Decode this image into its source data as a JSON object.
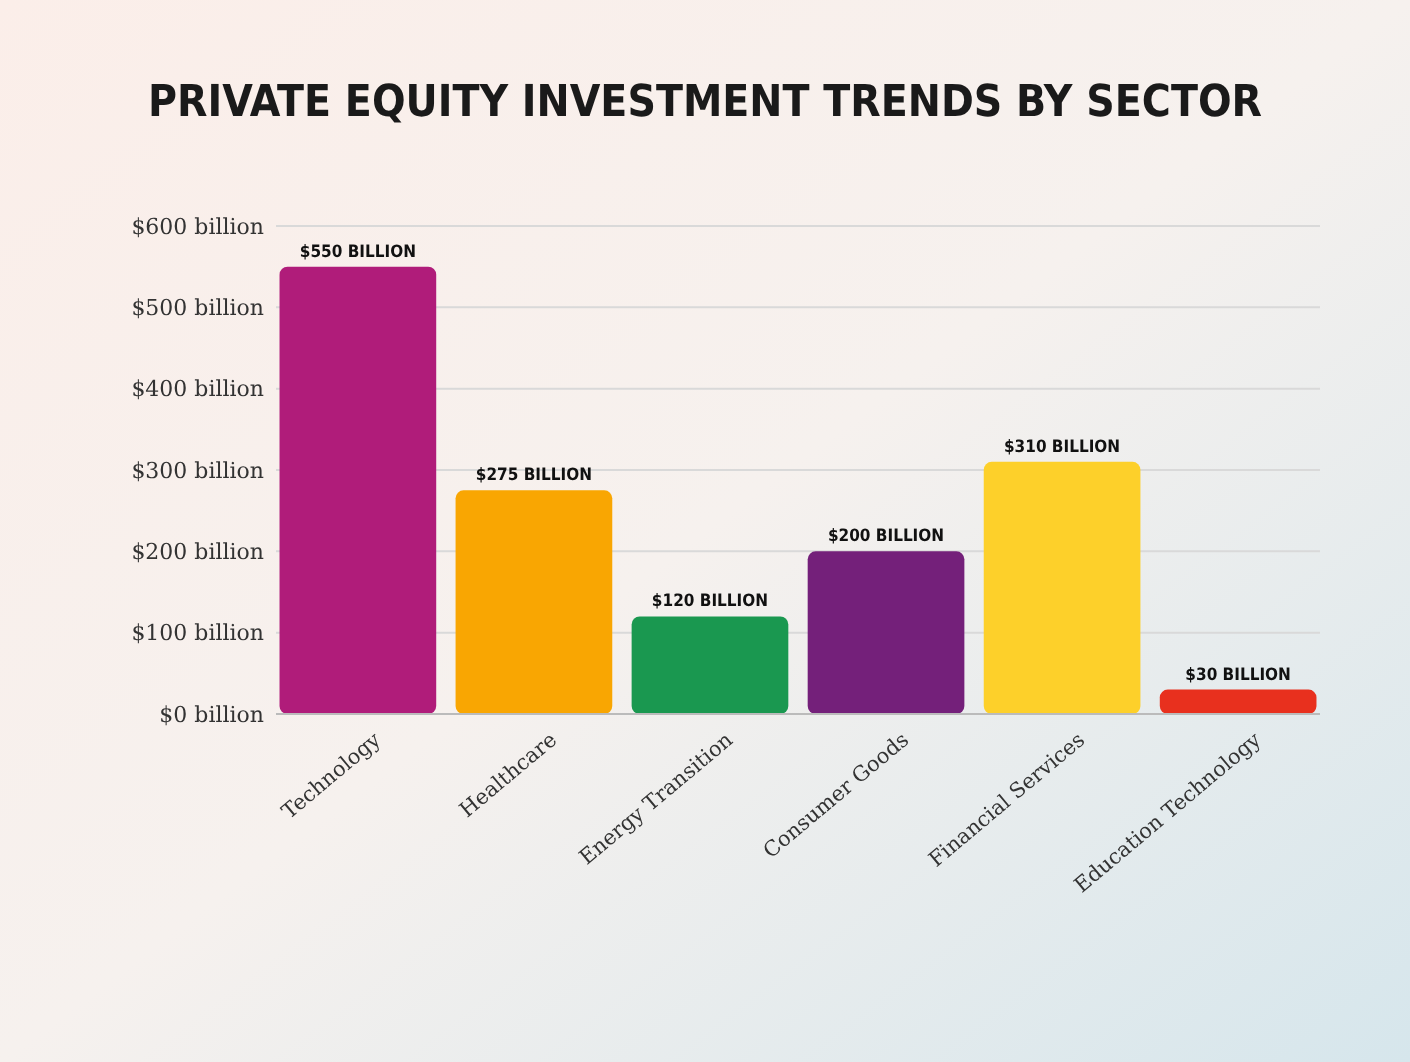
{
  "chart_data": {
    "type": "bar",
    "title": "PRIVATE EQUITY INVESTMENT TRENDS BY SECTOR",
    "categories": [
      "Technology",
      "Healthcare",
      "Energy Transition",
      "Consumer Goods",
      "Financial Services",
      "Education Technology"
    ],
    "values": [
      550,
      275,
      120,
      200,
      310,
      30
    ],
    "colors": [
      "#b01c7a",
      "#f9a602",
      "#1a9850",
      "#74207a",
      "#fdd02a",
      "#e8301e"
    ],
    "value_labels": [
      "$550 BILLION",
      "$275 BILLION",
      "$120 BILLION",
      "$200 BILLION",
      "$310 BILLION",
      "$30 BILLION"
    ],
    "ylim": [
      0,
      600
    ],
    "yticks": [
      {
        "value": 0,
        "label": "$0 billion"
      },
      {
        "value": 100,
        "label": "$100 billion"
      },
      {
        "value": 200,
        "label": "$200 billion"
      },
      {
        "value": 300,
        "label": "$300 billion"
      },
      {
        "value": 400,
        "label": "$400 billion"
      },
      {
        "value": 500,
        "label": "$500 billion"
      },
      {
        "value": 600,
        "label": "$600 billion"
      }
    ],
    "grid": "y"
  }
}
